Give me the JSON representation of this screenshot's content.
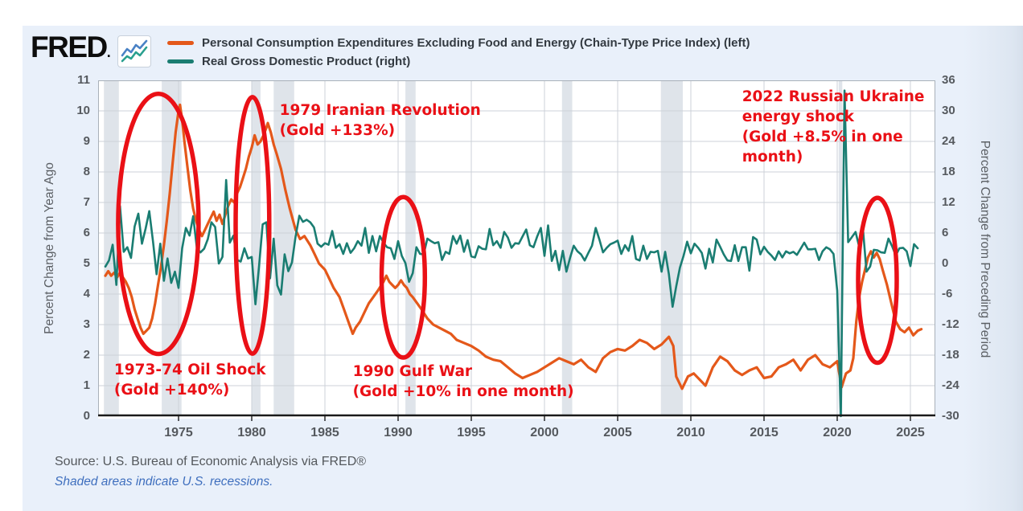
{
  "header": {
    "logo": "FRED",
    "legend": [
      {
        "label": "Personal Consumption Expenditures Excluding Food and Energy (Chain-Type Price Index) (left)",
        "color": "#e4581a"
      },
      {
        "label": "Real Gross Domestic Product (right)",
        "color": "#1a7d72"
      }
    ]
  },
  "footer": {
    "source": "Source: U.S. Bureau of Economic Analysis via FRED®",
    "note": "Shaded areas indicate U.S. recessions."
  },
  "colors": {
    "pce_line": "#e4581a",
    "gdp_line": "#1a7d72",
    "annotation_red": "#ea1016",
    "recession_band": "#dfe4ea",
    "gridline": "#ccd2d8",
    "plot_frame": "#a9b1b9",
    "axis_line": "#1a1a1a",
    "panel_bg": "#e9f0fa"
  },
  "chart_data": {
    "type": "line",
    "title": "",
    "x_axis": {
      "range": [
        1969.5,
        2026.9
      ],
      "ticks": [
        1975,
        1980,
        1985,
        1990,
        1995,
        2000,
        2005,
        2010,
        2015,
        2020,
        2025
      ],
      "grid": true
    },
    "left_axis": {
      "label": "Percent Change from Year Ago",
      "range": [
        0,
        11
      ],
      "ticks": [
        0,
        1,
        2,
        3,
        4,
        5,
        6,
        7,
        8,
        9,
        10,
        11
      ]
    },
    "right_axis": {
      "label": "Percent Change from Preceding Period",
      "range": [
        -30,
        36
      ],
      "ticks": [
        36,
        30,
        24,
        18,
        12,
        6,
        0,
        -6,
        -12,
        -18,
        -24,
        -30
      ]
    },
    "recessions": [
      [
        1969.9,
        1970.92
      ],
      [
        1973.85,
        1975.2
      ],
      [
        1980.0,
        1980.6
      ],
      [
        1981.5,
        1982.9
      ],
      [
        1990.5,
        1991.2
      ],
      [
        2001.2,
        2001.9
      ],
      [
        2007.95,
        2009.45
      ],
      [
        2020.1,
        2020.35
      ]
    ],
    "series": [
      {
        "name": "Personal Consumption Expenditures Excluding Food and Energy (Chain-Type Price Index) (left)",
        "axis": "left",
        "color": "#e4581a",
        "points": [
          [
            1970.0,
            4.6
          ],
          [
            1970.2,
            4.75
          ],
          [
            1970.4,
            4.6
          ],
          [
            1970.6,
            4.7
          ],
          [
            1970.8,
            4.55
          ],
          [
            1971.0,
            4.7
          ],
          [
            1971.2,
            4.55
          ],
          [
            1971.4,
            4.4
          ],
          [
            1971.6,
            4.2
          ],
          [
            1971.8,
            3.9
          ],
          [
            1972.0,
            3.5
          ],
          [
            1972.2,
            3.2
          ],
          [
            1972.4,
            2.9
          ],
          [
            1972.6,
            2.7
          ],
          [
            1972.8,
            2.8
          ],
          [
            1973.0,
            2.9
          ],
          [
            1973.2,
            3.2
          ],
          [
            1973.4,
            3.7
          ],
          [
            1973.6,
            4.3
          ],
          [
            1973.8,
            4.9
          ],
          [
            1974.0,
            5.6
          ],
          [
            1974.2,
            6.4
          ],
          [
            1974.4,
            7.3
          ],
          [
            1974.6,
            8.3
          ],
          [
            1974.8,
            9.3
          ],
          [
            1975.0,
            10.0
          ],
          [
            1975.1,
            10.2
          ],
          [
            1975.25,
            9.7
          ],
          [
            1975.4,
            9.0
          ],
          [
            1975.6,
            8.2
          ],
          [
            1975.8,
            7.4
          ],
          [
            1976.0,
            6.8
          ],
          [
            1976.2,
            6.4
          ],
          [
            1976.4,
            6.1
          ],
          [
            1976.6,
            5.9
          ],
          [
            1976.8,
            6.1
          ],
          [
            1977.0,
            6.3
          ],
          [
            1977.2,
            6.5
          ],
          [
            1977.4,
            6.7
          ],
          [
            1977.6,
            6.4
          ],
          [
            1977.8,
            6.6
          ],
          [
            1978.0,
            6.3
          ],
          [
            1978.2,
            6.6
          ],
          [
            1978.4,
            6.9
          ],
          [
            1978.6,
            7.1
          ],
          [
            1978.8,
            7.0
          ],
          [
            1979.0,
            7.3
          ],
          [
            1979.2,
            7.5
          ],
          [
            1979.4,
            7.8
          ],
          [
            1979.6,
            8.1
          ],
          [
            1979.8,
            8.5
          ],
          [
            1980.0,
            8.8
          ],
          [
            1980.2,
            9.2
          ],
          [
            1980.4,
            8.9
          ],
          [
            1980.6,
            9.0
          ],
          [
            1980.8,
            9.2
          ],
          [
            1981.0,
            9.45
          ],
          [
            1981.1,
            9.6
          ],
          [
            1981.3,
            9.3
          ],
          [
            1981.5,
            8.9
          ],
          [
            1981.7,
            8.6
          ],
          [
            1982.0,
            8.1
          ],
          [
            1982.3,
            7.4
          ],
          [
            1982.6,
            6.8
          ],
          [
            1983.0,
            6.1
          ],
          [
            1983.3,
            5.8
          ],
          [
            1983.6,
            5.9
          ],
          [
            1984.0,
            5.6
          ],
          [
            1984.3,
            5.3
          ],
          [
            1984.6,
            5.0
          ],
          [
            1985.0,
            4.8
          ],
          [
            1985.3,
            4.5
          ],
          [
            1985.6,
            4.2
          ],
          [
            1986.0,
            3.9
          ],
          [
            1986.3,
            3.5
          ],
          [
            1986.6,
            3.1
          ],
          [
            1986.9,
            2.7
          ],
          [
            1987.1,
            2.9
          ],
          [
            1987.4,
            3.1
          ],
          [
            1987.7,
            3.4
          ],
          [
            1988.0,
            3.7
          ],
          [
            1988.3,
            3.9
          ],
          [
            1988.6,
            4.1
          ],
          [
            1989.0,
            4.4
          ],
          [
            1989.2,
            4.6
          ],
          [
            1989.4,
            4.4
          ],
          [
            1989.6,
            4.3
          ],
          [
            1989.8,
            4.2
          ],
          [
            1990.0,
            4.3
          ],
          [
            1990.2,
            4.45
          ],
          [
            1990.4,
            4.3
          ],
          [
            1990.6,
            4.2
          ],
          [
            1990.8,
            4.0
          ],
          [
            1991.0,
            3.9
          ],
          [
            1991.3,
            3.7
          ],
          [
            1991.6,
            3.5
          ],
          [
            1992.0,
            3.2
          ],
          [
            1992.4,
            3.0
          ],
          [
            1992.8,
            2.9
          ],
          [
            1993.2,
            2.8
          ],
          [
            1993.6,
            2.7
          ],
          [
            1994.0,
            2.5
          ],
          [
            1994.5,
            2.4
          ],
          [
            1995.0,
            2.3
          ],
          [
            1995.5,
            2.15
          ],
          [
            1996.0,
            1.95
          ],
          [
            1996.5,
            1.85
          ],
          [
            1997.0,
            1.8
          ],
          [
            1997.5,
            1.6
          ],
          [
            1998.0,
            1.4
          ],
          [
            1998.5,
            1.25
          ],
          [
            1999.0,
            1.35
          ],
          [
            1999.5,
            1.45
          ],
          [
            2000.0,
            1.6
          ],
          [
            2000.5,
            1.75
          ],
          [
            2001.0,
            1.9
          ],
          [
            2001.5,
            1.8
          ],
          [
            2002.0,
            1.7
          ],
          [
            2002.5,
            1.85
          ],
          [
            2003.0,
            1.6
          ],
          [
            2003.5,
            1.45
          ],
          [
            2004.0,
            1.9
          ],
          [
            2004.5,
            2.1
          ],
          [
            2005.0,
            2.2
          ],
          [
            2005.5,
            2.15
          ],
          [
            2006.0,
            2.3
          ],
          [
            2006.5,
            2.5
          ],
          [
            2007.0,
            2.4
          ],
          [
            2007.5,
            2.2
          ],
          [
            2008.0,
            2.35
          ],
          [
            2008.5,
            2.6
          ],
          [
            2008.8,
            2.3
          ],
          [
            2009.0,
            1.3
          ],
          [
            2009.4,
            0.9
          ],
          [
            2009.8,
            1.3
          ],
          [
            2010.2,
            1.4
          ],
          [
            2010.6,
            1.2
          ],
          [
            2011.0,
            1.0
          ],
          [
            2011.5,
            1.6
          ],
          [
            2012.0,
            1.95
          ],
          [
            2012.5,
            1.8
          ],
          [
            2013.0,
            1.5
          ],
          [
            2013.5,
            1.35
          ],
          [
            2014.0,
            1.5
          ],
          [
            2014.5,
            1.6
          ],
          [
            2015.0,
            1.25
          ],
          [
            2015.5,
            1.3
          ],
          [
            2016.0,
            1.6
          ],
          [
            2016.5,
            1.7
          ],
          [
            2017.0,
            1.85
          ],
          [
            2017.5,
            1.5
          ],
          [
            2018.0,
            1.85
          ],
          [
            2018.5,
            2.0
          ],
          [
            2019.0,
            1.7
          ],
          [
            2019.5,
            1.6
          ],
          [
            2020.0,
            1.8
          ],
          [
            2020.3,
            0.95
          ],
          [
            2020.6,
            1.4
          ],
          [
            2020.9,
            1.5
          ],
          [
            2021.1,
            1.9
          ],
          [
            2021.3,
            3.1
          ],
          [
            2021.5,
            3.9
          ],
          [
            2021.7,
            4.4
          ],
          [
            2021.9,
            4.8
          ],
          [
            2022.1,
            5.2
          ],
          [
            2022.3,
            5.4
          ],
          [
            2022.5,
            5.2
          ],
          [
            2022.7,
            5.35
          ],
          [
            2022.9,
            5.15
          ],
          [
            2023.1,
            4.8
          ],
          [
            2023.4,
            4.3
          ],
          [
            2023.7,
            3.7
          ],
          [
            2024.0,
            3.1
          ],
          [
            2024.3,
            2.85
          ],
          [
            2024.6,
            2.75
          ],
          [
            2024.9,
            2.9
          ],
          [
            2025.2,
            2.65
          ],
          [
            2025.5,
            2.8
          ],
          [
            2025.75,
            2.85
          ]
        ]
      },
      {
        "name": "Real Gross Domestic Product (right)",
        "axis": "right",
        "color": "#1a7d72",
        "x_start": 1970.0,
        "x_step": 0.25,
        "values": [
          -0.6,
          0.6,
          3.7,
          -4.2,
          11.3,
          2.3,
          3.2,
          1.1,
          7.3,
          9.8,
          3.9,
          6.9,
          10.3,
          4.4,
          -2.1,
          3.9,
          -3.4,
          1.0,
          -3.8,
          -1.6,
          -4.8,
          3.0,
          7.0,
          5.5,
          9.3,
          3.0,
          2.2,
          2.9,
          4.8,
          8.1,
          7.2,
          0.0,
          1.3,
          16.4,
          4.1,
          5.5,
          0.7,
          0.4,
          3.0,
          1.0,
          1.3,
          -8.0,
          -0.5,
          7.7,
          8.1,
          -2.9,
          4.9,
          -4.3,
          -6.1,
          1.8,
          -1.5,
          0.2,
          5.4,
          9.4,
          8.2,
          8.6,
          8.1,
          7.1,
          3.9,
          3.3,
          4.0,
          3.7,
          6.4,
          3.1,
          3.8,
          1.9,
          4.0,
          2.1,
          3.0,
          4.4,
          3.5,
          7.0,
          2.1,
          5.4,
          2.4,
          5.4,
          4.1,
          3.2,
          3.0,
          0.9,
          4.4,
          1.5,
          0.1,
          -3.6,
          -1.9,
          3.2,
          1.9,
          1.8,
          4.9,
          4.4,
          4.0,
          4.2,
          0.7,
          2.3,
          1.9,
          5.4,
          3.9,
          5.5,
          2.3,
          4.6,
          1.4,
          1.2,
          3.4,
          2.9,
          2.8,
          6.8,
          3.6,
          4.4,
          3.1,
          6.2,
          5.1,
          3.1,
          4.0,
          3.9,
          5.3,
          6.7,
          3.6,
          3.2,
          5.3,
          7.0,
          1.5,
          7.5,
          0.5,
          2.5,
          -1.3,
          2.5,
          -1.6,
          1.1,
          3.5,
          2.4,
          1.8,
          0.6,
          2.1,
          3.5,
          7.0,
          4.7,
          2.2,
          3.1,
          3.8,
          4.1,
          4.5,
          1.9,
          3.6,
          2.5,
          5.4,
          0.9,
          0.6,
          3.5,
          0.9,
          2.3,
          2.2,
          2.5,
          -1.6,
          2.3,
          -2.1,
          -8.5,
          -4.5,
          -0.8,
          1.5,
          4.3,
          2.0,
          3.9,
          3.1,
          2.1,
          -1.0,
          2.9,
          0.2,
          4.7,
          3.3,
          1.8,
          0.6,
          0.5,
          3.6,
          0.5,
          3.2,
          3.2,
          -1.4,
          5.2,
          4.7,
          1.8,
          3.3,
          2.3,
          1.6,
          0.7,
          2.4,
          1.2,
          2.4,
          2.0,
          2.3,
          1.7,
          2.9,
          4.1,
          2.8,
          2.8,
          2.9,
          0.7,
          2.4,
          3.2,
          2.8,
          1.9,
          -5.3,
          -30.0,
          34.0,
          4.2,
          5.2,
          6.2,
          3.3,
          7.0,
          -1.6,
          -0.6,
          2.7,
          2.6,
          2.2,
          2.1,
          4.9,
          3.4,
          1.6,
          3.0,
          3.1,
          2.4,
          -0.5,
          3.8,
          3.0
        ]
      }
    ],
    "annotations": [
      {
        "id": "oil-shock",
        "lines": [
          "1973-74 Oil Shock",
          "(Gold +140%)"
        ],
        "x_year": 1970.6,
        "y_value": 1.85
      },
      {
        "id": "iranian-revolution",
        "lines": [
          "1979 Iranian Revolution",
          "(Gold +133%)"
        ],
        "x_year": 1981.9,
        "y_value": 10.35
      },
      {
        "id": "gulf-war",
        "lines": [
          "1990 Gulf War",
          "(Gold +10% in one month)"
        ],
        "x_year": 1986.9,
        "y_value": 1.8
      },
      {
        "id": "ukraine-energy-shock",
        "lines": [
          "2022 Russian Ukraine",
          "energy shock",
          "(Gold +8.5% in one",
          "month)"
        ],
        "x_year": 2013.5,
        "y_value": 10.8
      }
    ],
    "ellipses": [
      {
        "id": "circle-1973",
        "cx_year": 1973.62,
        "cy_value": 6.3,
        "rx_years": 2.75,
        "ry_values": 4.26
      },
      {
        "id": "circle-1980",
        "cx_year": 1980.05,
        "cy_value": 6.25,
        "rx_years": 1.15,
        "ry_values": 4.2
      },
      {
        "id": "circle-1990",
        "cx_year": 1990.35,
        "cy_value": 4.55,
        "rx_years": 1.48,
        "ry_values": 2.63
      },
      {
        "id": "circle-2022",
        "cx_year": 2022.75,
        "cy_value": 4.45,
        "rx_years": 1.32,
        "ry_values": 2.7
      }
    ]
  }
}
